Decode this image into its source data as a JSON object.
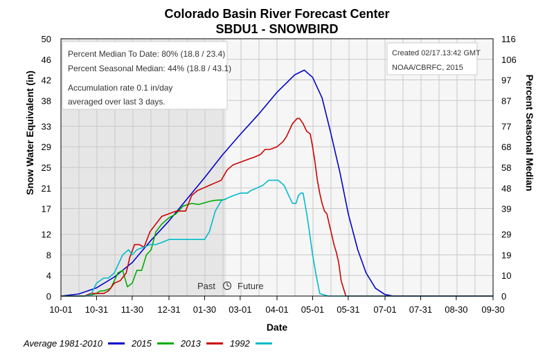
{
  "chart_data": {
    "type": "line",
    "title": "Colorado Basin River Forecast Center",
    "subtitle": "SBDU1 - SNOWBIRD",
    "xlabel": "Date",
    "ylabel": "Snow Water Equivalent (in)",
    "y2label": "Percent Seasonal Median",
    "ylim": [
      0,
      50
    ],
    "y2lim": [
      0,
      116
    ],
    "grid": true,
    "x_ticks": [
      "10-01",
      "10-31",
      "11-30",
      "12-31",
      "01-30",
      "03-01",
      "04-01",
      "05-01",
      "05-31",
      "07-01",
      "07-31",
      "08-30",
      "09-30"
    ],
    "x_tick_days": [
      0,
      30,
      60,
      91,
      121,
      151,
      182,
      212,
      242,
      273,
      303,
      333,
      364
    ],
    "y_ticks": [
      0,
      4,
      8,
      12,
      17,
      21,
      25,
      29,
      33,
      38,
      42,
      46,
      50
    ],
    "y2_ticks": [
      0,
      10,
      19,
      29,
      39,
      48,
      58,
      68,
      77,
      87,
      97,
      106,
      116
    ],
    "today_day": 139,
    "past_label": "Past",
    "future_label": "Future",
    "info_lines": [
      "Percent Median To Date: 80% (18.8 / 23.4)",
      "Percent Seasonal Median: 44% (18.8 / 43.1)"
    ],
    "rate_lines": [
      "Accumulation rate 0.1 in/day",
      "averaged over last 3 days."
    ],
    "created_lines": [
      "Created 02/17.13:42 GMT",
      "NOAA/CBRFC, 2015"
    ],
    "series": [
      {
        "name": "Average 1981-2010",
        "color": "#0000cc",
        "x": [
          0,
          15,
          30,
          45,
          60,
          75,
          91,
          106,
          121,
          136,
          151,
          166,
          182,
          197,
          205,
          212,
          220,
          227,
          235,
          242,
          250,
          257,
          265,
          273,
          280,
          290,
          364
        ],
        "y": [
          0,
          0.4,
          1.6,
          3.7,
          6.5,
          10.6,
          14.6,
          18.8,
          23.0,
          27.4,
          31.4,
          35.2,
          39.6,
          43.0,
          43.9,
          42.5,
          38.5,
          32.0,
          24.0,
          16.0,
          9.0,
          4.5,
          1.5,
          0.3,
          0,
          0,
          0
        ]
      },
      {
        "name": "2015",
        "color": "#00aa00",
        "x": [
          0,
          20,
          25,
          30,
          33,
          36,
          42,
          48,
          52,
          56,
          60,
          64,
          68,
          72,
          76,
          80,
          85,
          91,
          97,
          103,
          110,
          116,
          122,
          127,
          130,
          136,
          139
        ],
        "y": [
          0,
          0,
          0.2,
          0.5,
          1.0,
          1.0,
          1.5,
          4.5,
          5.0,
          1.8,
          2.5,
          5.0,
          5.0,
          8.0,
          9.0,
          12.5,
          14.0,
          15.2,
          16.0,
          17.5,
          18.0,
          17.8,
          18.2,
          18.5,
          18.6,
          18.7,
          18.8
        ]
      },
      {
        "name": "2013",
        "color": "#cc0000",
        "x": [
          0,
          20,
          25,
          28,
          32,
          36,
          40,
          45,
          50,
          55,
          58,
          62,
          66,
          70,
          75,
          80,
          85,
          91,
          97,
          105,
          110,
          115,
          120,
          125,
          130,
          135,
          140,
          145,
          151,
          157,
          163,
          168,
          172,
          176,
          182,
          187,
          190,
          195,
          199,
          201,
          204,
          207,
          210,
          212,
          214,
          216,
          218,
          220,
          222,
          224,
          226,
          228,
          230,
          232,
          234,
          236,
          240,
          364
        ],
        "y": [
          0,
          0,
          0.5,
          0.5,
          0.5,
          0.5,
          1.0,
          2.5,
          3.0,
          4.5,
          7.5,
          10.0,
          10.0,
          9.5,
          12.5,
          14.0,
          15.5,
          16.0,
          16.5,
          16.5,
          19.5,
          20.5,
          21.0,
          21.5,
          22.0,
          22.5,
          24.5,
          25.5,
          26.0,
          26.5,
          27.0,
          27.5,
          28.5,
          28.5,
          29.0,
          30.0,
          31.0,
          33.5,
          34.5,
          34.5,
          33.5,
          32.0,
          31.5,
          29.0,
          26.0,
          22.5,
          20.0,
          18.0,
          16.5,
          16.0,
          14.0,
          12.0,
          10.0,
          8.5,
          6.5,
          3.0,
          0,
          0
        ]
      },
      {
        "name": "1992",
        "color": "#00bbcc",
        "x": [
          0,
          20,
          25,
          30,
          36,
          40,
          45,
          52,
          57,
          60,
          64,
          70,
          75,
          80,
          86,
          91,
          96,
          100,
          106,
          110,
          115,
          121,
          125,
          130,
          135,
          140,
          145,
          151,
          157,
          160,
          165,
          170,
          175,
          180,
          183,
          188,
          192,
          195,
          198,
          200,
          202,
          204,
          207,
          209,
          212,
          215,
          218,
          225,
          364
        ],
        "y": [
          0,
          0,
          0.2,
          2.5,
          3.5,
          3.5,
          4.5,
          8.0,
          9.0,
          8.0,
          9.0,
          9.5,
          10.0,
          10.0,
          10.5,
          11.0,
          11.0,
          11.0,
          11.0,
          11.0,
          11.0,
          11.0,
          12.5,
          16.5,
          18.5,
          19.0,
          19.5,
          20.0,
          20.0,
          20.5,
          21.0,
          21.5,
          22.5,
          22.5,
          22.5,
          21.5,
          19.5,
          18.0,
          18.0,
          19.5,
          20.0,
          20.0,
          16.0,
          13.0,
          8.0,
          4.0,
          0.5,
          0,
          0
        ]
      }
    ]
  }
}
